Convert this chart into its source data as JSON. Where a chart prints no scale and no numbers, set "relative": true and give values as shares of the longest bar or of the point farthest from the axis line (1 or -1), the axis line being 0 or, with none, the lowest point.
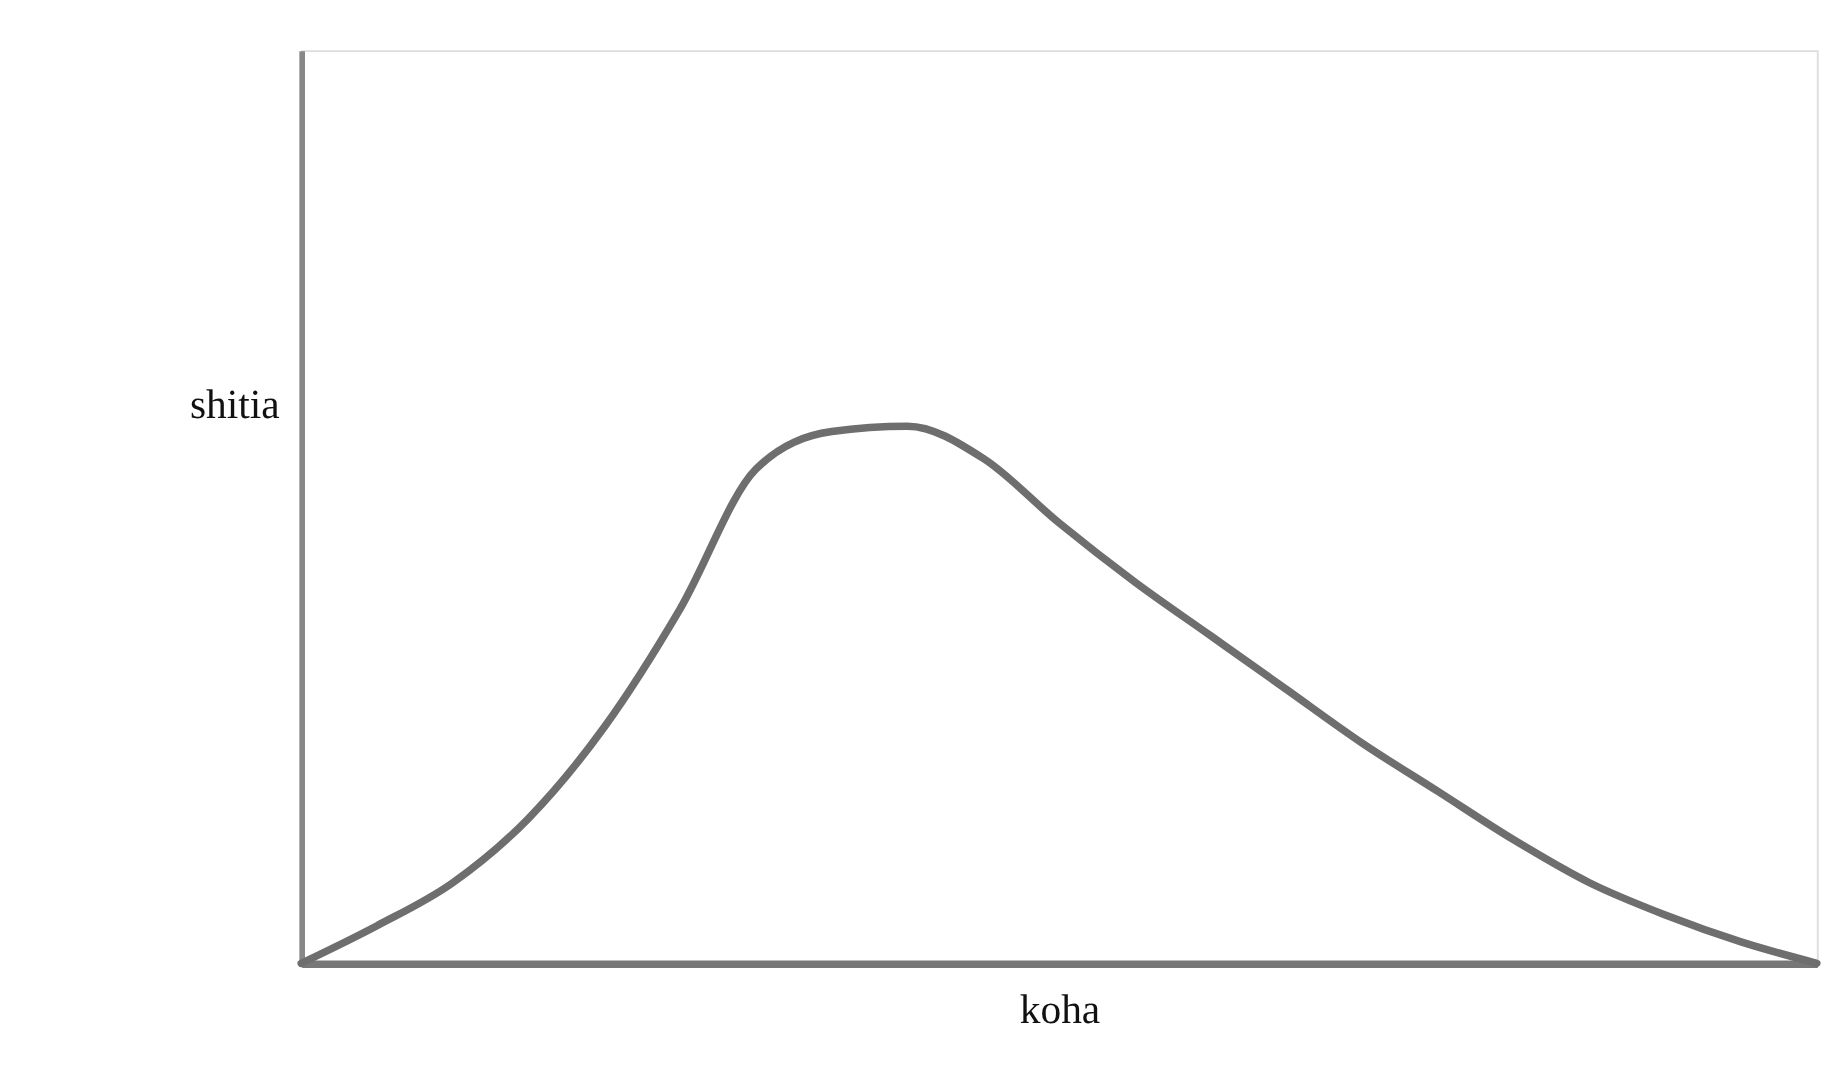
{
  "chart_data": {
    "type": "line",
    "relative": true,
    "xlabel": "koha",
    "ylabel": "shitia",
    "categories": [
      null,
      null,
      null,
      null,
      null,
      null,
      null,
      null,
      null,
      null,
      null,
      null,
      null,
      null,
      null,
      null,
      null,
      null,
      null,
      null,
      null
    ],
    "series": [
      {
        "color": "#6e6e6e",
        "values": [
          0,
          0.07,
          0.15,
          0.27,
          0.44,
          0.66,
          0.92,
          0.99,
          1.0,
          0.94,
          0.82,
          0.71,
          0.61,
          0.51,
          0.41,
          0.32,
          0.23,
          0.15,
          0.09,
          0.04,
          0.0
        ]
      }
    ],
    "marker": "none",
    "grid": false
  }
}
